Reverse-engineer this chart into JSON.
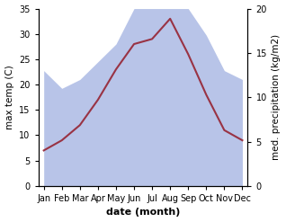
{
  "months": [
    "Jan",
    "Feb",
    "Mar",
    "Apr",
    "May",
    "Jun",
    "Jul",
    "Aug",
    "Sep",
    "Oct",
    "Nov",
    "Dec"
  ],
  "max_temp": [
    7,
    9,
    12,
    17,
    23,
    28,
    29,
    33,
    26,
    18,
    11,
    9
  ],
  "precipitation": [
    13,
    11,
    12,
    14,
    16,
    20,
    20,
    20,
    20,
    17,
    13,
    12
  ],
  "precip_fill_color": "#b8c4e8",
  "temp_color": "#993344",
  "temp_ylim": [
    0,
    35
  ],
  "temp_yticks": [
    0,
    5,
    10,
    15,
    20,
    25,
    30,
    35
  ],
  "precip_ylim": [
    0,
    20
  ],
  "precip_yticks": [
    0,
    5,
    10,
    15,
    20
  ],
  "xlabel": "date (month)",
  "ylabel_left": "max temp (C)",
  "ylabel_right": "med. precipitation (kg/m2)",
  "axis_fontsize": 7.5,
  "tick_fontsize": 7,
  "xlabel_fontsize": 8
}
